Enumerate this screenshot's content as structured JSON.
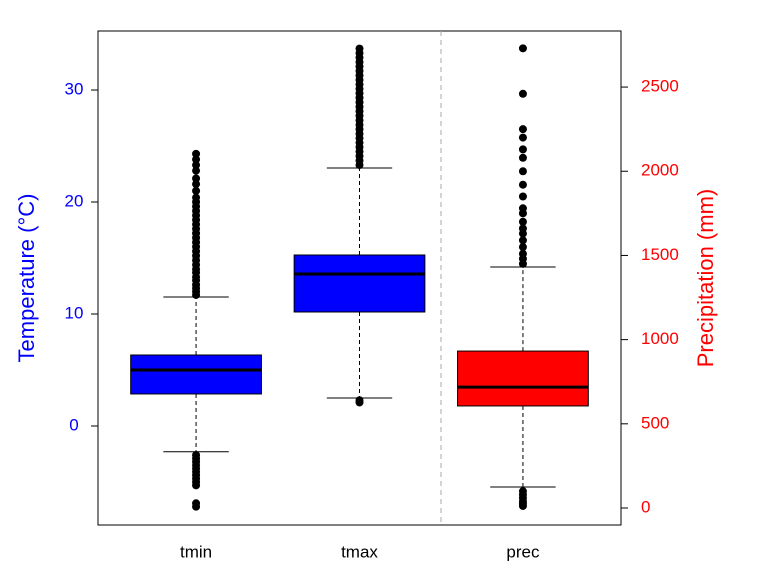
{
  "chart_data": {
    "type": "boxplot",
    "categories": [
      "tmin",
      "tmax",
      "prec"
    ],
    "ylabel": "Temperature (°C)",
    "y2label": "Precipitation (mm)",
    "ylim": [
      -8.84,
      35.27
    ],
    "yticks": [
      0,
      10,
      20,
      30
    ],
    "y2lim": [
      -101,
      2833
    ],
    "y2ticks": [
      0,
      500,
      1000,
      1500,
      2000,
      2500
    ],
    "ycolor": "#0000ff",
    "y2color": "#ff0000",
    "series": [
      {
        "name": "tmin",
        "color": "#0000ff",
        "axis": "y",
        "whislo": -2.3,
        "q1": 2.86,
        "med": 5.0,
        "q3": 6.34,
        "whishi": 11.52,
        "outliers": [
          11.7,
          12.0,
          12.3,
          12.6,
          13.0,
          13.3,
          13.7,
          14.0,
          14.4,
          14.8,
          15.2,
          15.6,
          16.0,
          16.4,
          16.8,
          17.2,
          17.6,
          18.0,
          18.4,
          18.8,
          19.2,
          19.6,
          20.0,
          20.4,
          21.0,
          21.6,
          22.1,
          22.8,
          23.3,
          23.8,
          24.3,
          -2.6,
          -2.9,
          -3.2,
          -3.5,
          -3.8,
          -4.1,
          -4.4,
          -4.7,
          -5.0,
          -5.3,
          -6.9,
          -7.2
        ]
      },
      {
        "name": "tmax",
        "color": "#0000ff",
        "axis": "y",
        "whislo": 2.5,
        "q1": 10.18,
        "med": 13.57,
        "q3": 15.27,
        "whishi": 23.04,
        "outliers": [
          23.3,
          23.7,
          24.1,
          24.5,
          24.9,
          25.3,
          25.7,
          26.1,
          26.5,
          26.9,
          27.3,
          27.7,
          28.1,
          28.5,
          28.9,
          29.3,
          29.7,
          30.1,
          30.5,
          30.9,
          31.3,
          31.7,
          32.1,
          32.5,
          32.9,
          33.3,
          33.7,
          2.1,
          2.3
        ]
      },
      {
        "name": "prec",
        "color": "#ff0000",
        "axis": "y2",
        "whislo": 125,
        "q1": 606,
        "med": 718,
        "q3": 932,
        "whishi": 1431,
        "outliers": [
          1450,
          1480,
          1510,
          1550,
          1590,
          1630,
          1660,
          1700,
          1750,
          1780,
          1850,
          1920,
          2000,
          2080,
          2130,
          2200,
          2250,
          2460,
          2730,
          100,
          80,
          60,
          40,
          25,
          12
        ]
      }
    ]
  }
}
